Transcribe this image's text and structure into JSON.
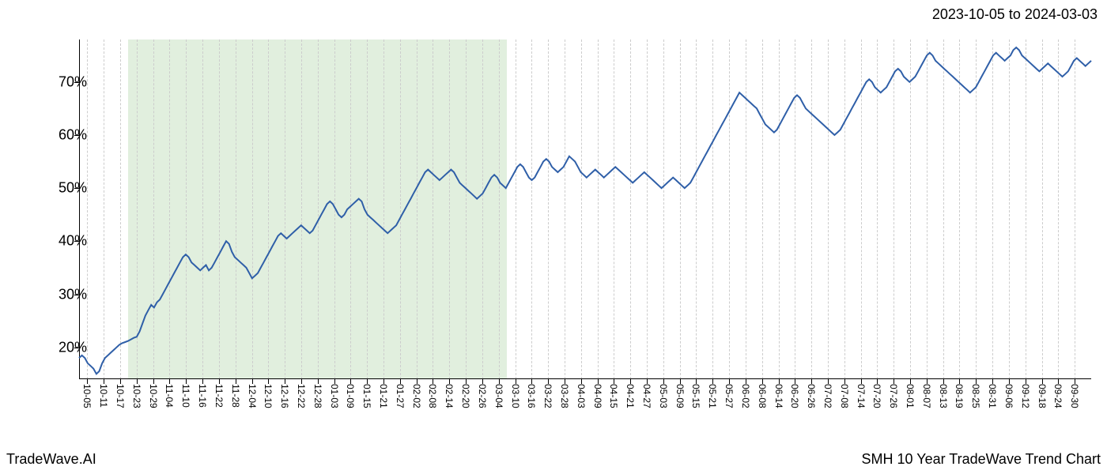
{
  "header": {
    "date_range": "2023-10-05 to 2024-03-03"
  },
  "footer": {
    "left": "TradeWave.AI",
    "right": "SMH 10 Year TradeWave Trend Chart"
  },
  "chart": {
    "type": "line",
    "background_color": "#ffffff",
    "line_color": "#2f5fa8",
    "line_width": 2,
    "grid_color": "#cccccc",
    "grid_dash": "4,3",
    "highlight": {
      "start_index": 3,
      "end_index": 25,
      "fill_color": "#d4e8d0",
      "opacity": 0.7
    },
    "ylim": [
      14,
      78
    ],
    "y_ticks": [
      20,
      30,
      40,
      50,
      60,
      70
    ],
    "y_tick_labels": [
      "20%",
      "30%",
      "40%",
      "50%",
      "60%",
      "70%"
    ],
    "y_tick_fontsize": 18,
    "x_labels": [
      "10-05",
      "10-11",
      "10-17",
      "10-23",
      "10-29",
      "11-04",
      "11-10",
      "11-16",
      "11-22",
      "11-28",
      "12-04",
      "12-10",
      "12-16",
      "12-22",
      "12-28",
      "01-03",
      "01-09",
      "01-15",
      "01-21",
      "01-27",
      "02-02",
      "02-08",
      "02-14",
      "02-20",
      "02-26",
      "03-04",
      "03-10",
      "03-16",
      "03-22",
      "03-28",
      "04-03",
      "04-09",
      "04-15",
      "04-21",
      "04-27",
      "05-03",
      "05-09",
      "05-15",
      "05-21",
      "05-27",
      "06-02",
      "06-08",
      "06-14",
      "06-20",
      "06-26",
      "07-02",
      "07-08",
      "07-14",
      "07-20",
      "07-26",
      "08-01",
      "08-07",
      "08-13",
      "08-19",
      "08-25",
      "08-31",
      "09-06",
      "09-12",
      "09-18",
      "09-24",
      "09-30"
    ],
    "x_tick_fontsize": 12,
    "values": [
      18,
      18.5,
      18,
      17,
      16.5,
      16,
      15,
      15.5,
      17,
      18,
      18.5,
      19,
      19.5,
      20,
      20.5,
      20.8,
      21,
      21.2,
      21.5,
      21.8,
      22,
      23,
      24.5,
      26,
      27,
      28,
      27.5,
      28.5,
      29,
      30,
      31,
      32,
      33,
      34,
      35,
      36,
      37,
      37.5,
      37,
      36,
      35.5,
      35,
      34.5,
      35,
      35.5,
      34.5,
      35,
      36,
      37,
      38,
      39,
      40,
      39.5,
      38,
      37,
      36.5,
      36,
      35.5,
      35,
      34,
      33,
      33.5,
      34,
      35,
      36,
      37,
      38,
      39,
      40,
      41,
      41.5,
      41,
      40.5,
      41,
      41.5,
      42,
      42.5,
      43,
      42.5,
      42,
      41.5,
      42,
      43,
      44,
      45,
      46,
      47,
      47.5,
      47,
      46,
      45,
      44.5,
      45,
      46,
      46.5,
      47,
      47.5,
      48,
      47.5,
      46,
      45,
      44.5,
      44,
      43.5,
      43,
      42.5,
      42,
      41.5,
      42,
      42.5,
      43,
      44,
      45,
      46,
      47,
      48,
      49,
      50,
      51,
      52,
      53,
      53.5,
      53,
      52.5,
      52,
      51.5,
      52,
      52.5,
      53,
      53.5,
      53,
      52,
      51,
      50.5,
      50,
      49.5,
      49,
      48.5,
      48,
      48.5,
      49,
      50,
      51,
      52,
      52.5,
      52,
      51,
      50.5,
      50,
      51,
      52,
      53,
      54,
      54.5,
      54,
      53,
      52,
      51.5,
      52,
      53,
      54,
      55,
      55.5,
      55,
      54,
      53.5,
      53,
      53.5,
      54,
      55,
      56,
      55.5,
      55,
      54,
      53,
      52.5,
      52,
      52.5,
      53,
      53.5,
      53,
      52.5,
      52,
      52.5,
      53,
      53.5,
      54,
      53.5,
      53,
      52.5,
      52,
      51.5,
      51,
      51.5,
      52,
      52.5,
      53,
      52.5,
      52,
      51.5,
      51,
      50.5,
      50,
      50.5,
      51,
      51.5,
      52,
      51.5,
      51,
      50.5,
      50,
      50.5,
      51,
      52,
      53,
      54,
      55,
      56,
      57,
      58,
      59,
      60,
      61,
      62,
      63,
      64,
      65,
      66,
      67,
      68,
      67.5,
      67,
      66.5,
      66,
      65.5,
      65,
      64,
      63,
      62,
      61.5,
      61,
      60.5,
      61,
      62,
      63,
      64,
      65,
      66,
      67,
      67.5,
      67,
      66,
      65,
      64.5,
      64,
      63.5,
      63,
      62.5,
      62,
      61.5,
      61,
      60.5,
      60,
      60.5,
      61,
      62,
      63,
      64,
      65,
      66,
      67,
      68,
      69,
      70,
      70.5,
      70,
      69,
      68.5,
      68,
      68.5,
      69,
      70,
      71,
      72,
      72.5,
      72,
      71,
      70.5,
      70,
      70.5,
      71,
      72,
      73,
      74,
      75,
      75.5,
      75,
      74,
      73.5,
      73,
      72.5,
      72,
      71.5,
      71,
      70.5,
      70,
      69.5,
      69,
      68.5,
      68,
      68.5,
      69,
      70,
      71,
      72,
      73,
      74,
      75,
      75.5,
      75,
      74.5,
      74,
      74.5,
      75,
      76,
      76.5,
      76,
      75,
      74.5,
      74,
      73.5,
      73,
      72.5,
      72,
      72.5,
      73,
      73.5,
      73,
      72.5,
      72,
      71.5,
      71,
      71.5,
      72,
      73,
      74,
      74.5,
      74,
      73.5,
      73,
      73.5,
      74
    ]
  }
}
